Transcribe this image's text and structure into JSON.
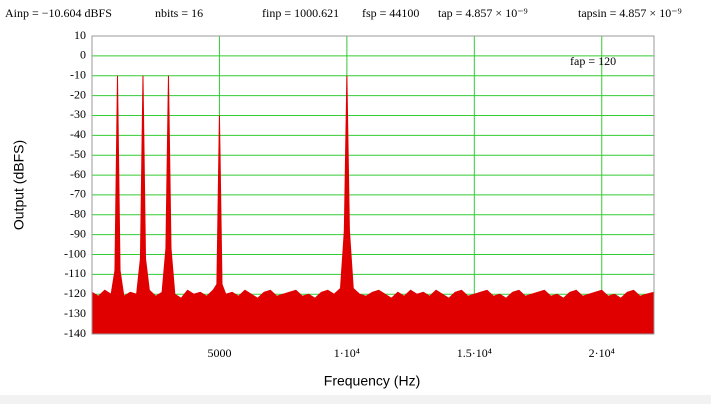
{
  "chart_data": {
    "type": "line",
    "annotations": [
      "Ainp = −10.604 dBFS",
      "nbits = 16",
      "finp = 1000.621",
      "fsp = 44100",
      "tap = 4.857 × 10⁻⁹",
      "tapsin = 4.857 × 10⁻⁹",
      "fap = 120"
    ],
    "x_label": "Frequency (Hz)",
    "y_label": "Output (dBFS)",
    "xlim": [
      0,
      22050
    ],
    "ylim": [
      -140,
      10
    ],
    "xticks": [
      5000,
      {
        "value": 10000,
        "label": "1·10⁴"
      },
      {
        "value": 15000,
        "label": "1.5·10⁴"
      },
      {
        "value": 20000,
        "label": "2·10⁴"
      }
    ],
    "yticks": [
      10,
      0,
      -10,
      -20,
      -30,
      -40,
      -50,
      -60,
      -70,
      -80,
      -90,
      -100,
      -110,
      -120,
      -130,
      -140
    ],
    "grid": true,
    "grid_color": "#33cc33",
    "series": [
      {
        "color": "#e00000",
        "x": [
          0,
          250,
          500,
          750,
          900,
          1000,
          1100,
          1250,
          1500,
          1750,
          1900,
          2000,
          2100,
          2250,
          2500,
          2750,
          2900,
          3000,
          3100,
          3250,
          3500,
          3750,
          4000,
          4250,
          4500,
          4750,
          4900,
          5000,
          5100,
          5250,
          5500,
          5750,
          6000,
          6250,
          6500,
          6750,
          7000,
          7250,
          7500,
          7750,
          8000,
          8250,
          8500,
          8750,
          9000,
          9250,
          9500,
          9750,
          9900,
          10000,
          10100,
          10250,
          10500,
          10750,
          11000,
          11250,
          11500,
          11750,
          12000,
          12250,
          12500,
          12750,
          13000,
          13250,
          13500,
          13750,
          14000,
          14250,
          14500,
          14750,
          15000,
          15250,
          15500,
          15750,
          16000,
          16250,
          16500,
          16750,
          17000,
          17250,
          17500,
          17750,
          18000,
          18250,
          18500,
          18750,
          19000,
          19250,
          19500,
          19750,
          20000,
          20250,
          20500,
          20750,
          21000,
          21250,
          21500,
          21750,
          22050
        ],
        "values": [
          -119,
          -121,
          -118,
          -120,
          -108,
          -10,
          -108,
          -121,
          -119,
          -120,
          -102,
          -10,
          -102,
          -118,
          -121,
          -119,
          -97,
          -10,
          -97,
          -120,
          -122,
          -118,
          -120,
          -119,
          -121,
          -118,
          -115,
          -30,
          -115,
          -120,
          -119,
          -121,
          -118,
          -120,
          -122,
          -119,
          -118,
          -121,
          -120,
          -119,
          -118,
          -121,
          -120,
          -122,
          -119,
          -118,
          -120,
          -117,
          -88,
          -10,
          -88,
          -117,
          -120,
          -121,
          -119,
          -118,
          -120,
          -122,
          -119,
          -121,
          -118,
          -120,
          -119,
          -121,
          -118,
          -120,
          -122,
          -119,
          -118,
          -121,
          -120,
          -119,
          -118,
          -121,
          -120,
          -122,
          -119,
          -118,
          -121,
          -120,
          -119,
          -118,
          -121,
          -120,
          -122,
          -119,
          -118,
          -121,
          -120,
          -119,
          -118,
          -121,
          -120,
          -122,
          -119,
          -118,
          -121,
          -120,
          -119
        ]
      }
    ]
  }
}
